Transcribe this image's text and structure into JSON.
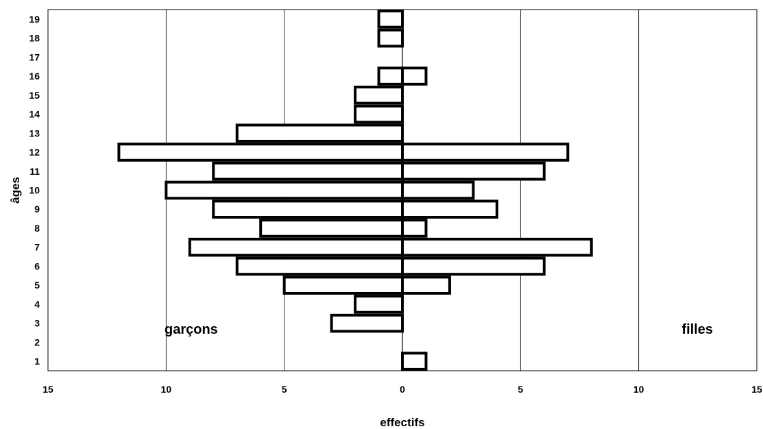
{
  "chart_data": {
    "type": "bar",
    "orientation": "horizontal",
    "title": "",
    "xlabel": "effectifs",
    "ylabel": "âges",
    "categories": [
      "1",
      "2",
      "3",
      "4",
      "5",
      "6",
      "7",
      "8",
      "9",
      "10",
      "11",
      "12",
      "13",
      "14",
      "15",
      "16",
      "17",
      "18",
      "19"
    ],
    "series": [
      {
        "name": "garçons",
        "side": "left",
        "values": [
          0,
          0,
          3,
          2,
          5,
          7,
          9,
          6,
          8,
          10,
          8,
          12,
          7,
          2,
          2,
          1,
          0,
          1,
          1
        ]
      },
      {
        "name": "filles",
        "side": "right",
        "values": [
          1,
          0,
          0,
          0,
          2,
          6,
          8,
          1,
          4,
          3,
          6,
          7,
          0,
          0,
          0,
          1,
          0,
          0,
          0
        ]
      }
    ],
    "xlim": [
      -15,
      15
    ],
    "xticks": [
      -15,
      -10,
      -5,
      0,
      5,
      10,
      15
    ],
    "xtick_labels": [
      "15",
      "10",
      "5",
      "0",
      "5",
      "10",
      "15"
    ],
    "grid": "vertical",
    "annotations": [
      {
        "text": "garçons",
        "position": "lower-left"
      },
      {
        "text": "filles",
        "position": "lower-right"
      }
    ]
  }
}
